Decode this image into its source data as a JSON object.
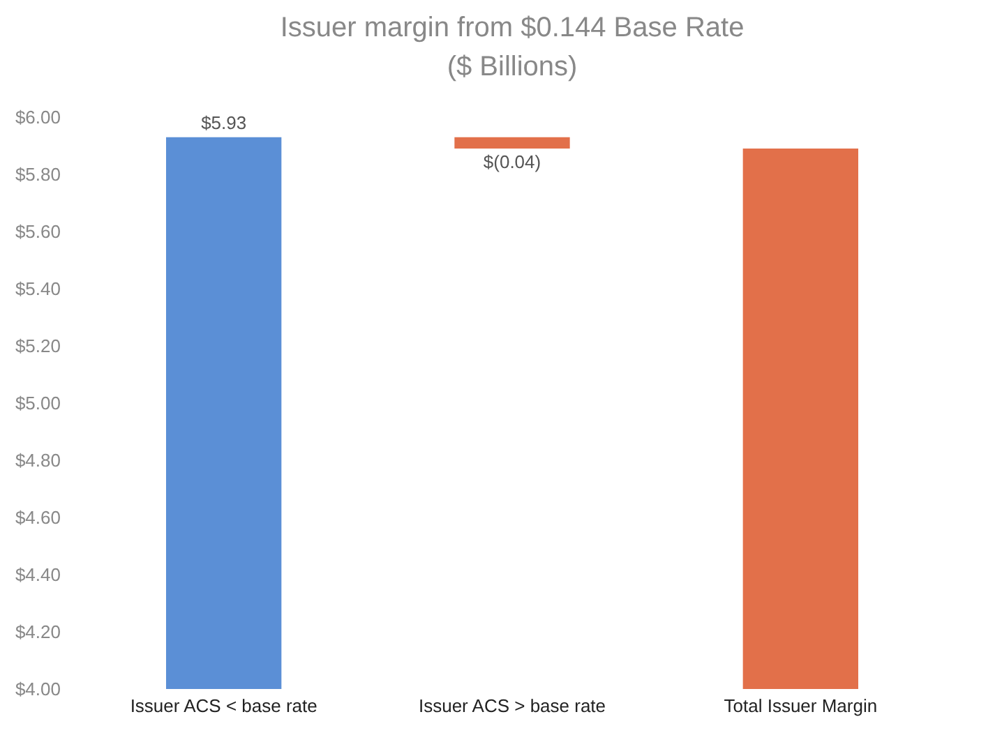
{
  "chart_data": {
    "type": "bar",
    "title": [
      "Issuer margin from $0.144 Base Rate",
      "($ Billions)"
    ],
    "categories": [
      "Issuer ACS < base rate",
      "Issuer ACS > base rate",
      "Total Issuer Margin"
    ],
    "values": [
      5.93,
      -0.04,
      5.89
    ],
    "base": [
      null,
      5.93,
      null
    ],
    "colors": [
      "#5b8fd6",
      "#e2704a",
      "#e2704a"
    ],
    "value_labels": [
      "$5.93",
      "$(0.04)",
      null
    ],
    "ylim": [
      4,
      6
    ],
    "yticks": [
      {
        "value": 4,
        "label": "$4.00"
      },
      {
        "value": 4.2,
        "label": "$4.20"
      },
      {
        "value": 4.4,
        "label": "$4.40"
      },
      {
        "value": 4.6,
        "label": "$4.60"
      },
      {
        "value": 4.8,
        "label": "$4.80"
      },
      {
        "value": 5,
        "label": "$5.00"
      },
      {
        "value": 5.2,
        "label": "$5.20"
      },
      {
        "value": 5.4,
        "label": "$5.40"
      },
      {
        "value": 5.6,
        "label": "$5.60"
      },
      {
        "value": 5.8,
        "label": "$5.80"
      },
      {
        "value": 6,
        "label": "$6.00"
      }
    ],
    "grid": false
  }
}
